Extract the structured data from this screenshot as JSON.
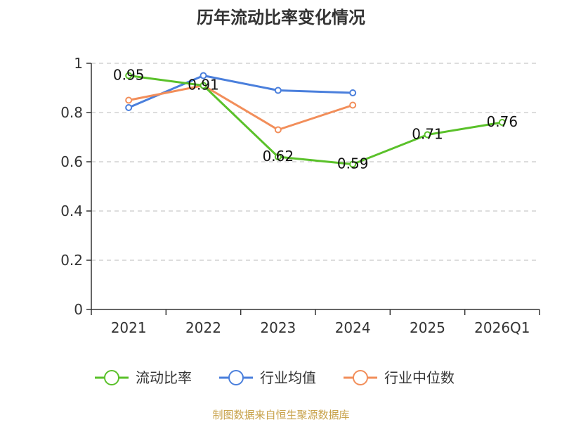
{
  "chart_data": {
    "type": "line",
    "title": "历年流动比率变化情况",
    "categories": [
      "2021",
      "2022",
      "2023",
      "2024",
      "2025",
      "2026Q1"
    ],
    "ylim": [
      0,
      1
    ],
    "yticks": [
      "0",
      "0.2",
      "0.4",
      "0.6",
      "0.8",
      "1"
    ],
    "yticks_values": [
      0,
      0.2,
      0.4,
      0.6,
      0.8,
      1
    ],
    "grid": true,
    "legend_position": "bottom",
    "series": [
      {
        "name": "流动比率",
        "color": "#5ac12a",
        "values": [
          0.95,
          0.91,
          0.62,
          0.59,
          0.71,
          0.76
        ],
        "labels": [
          "0.95",
          "0.91",
          "0.62",
          "0.59",
          "0.71",
          "0.76"
        ]
      },
      {
        "name": "行业均值",
        "color": "#4a7fdc",
        "values": [
          0.82,
          0.95,
          0.89,
          0.88,
          null,
          null
        ]
      },
      {
        "name": "行业中位数",
        "color": "#f28e5a",
        "values": [
          0.85,
          0.91,
          0.73,
          0.83,
          null,
          null
        ]
      }
    ],
    "source": "制图数据来自恒生聚源数据库"
  }
}
